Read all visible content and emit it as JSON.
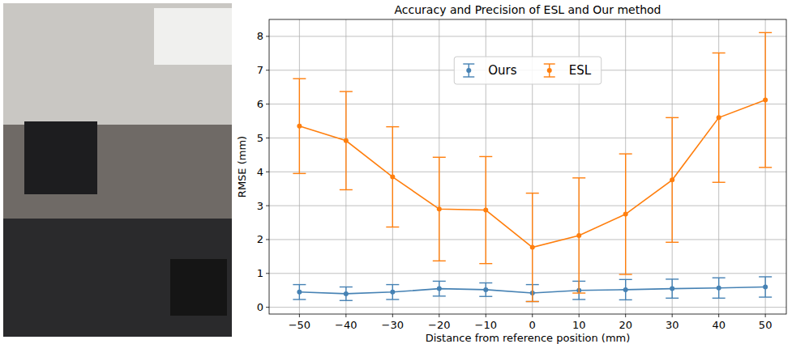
{
  "chart_data": {
    "type": "line",
    "title": "Accuracy and Precision of ESL and Our method",
    "x_label": "Distance from reference position (mm)",
    "y_label": "RMSE (mm)",
    "x": [
      -50,
      -40,
      -30,
      -20,
      -10,
      0,
      10,
      20,
      30,
      40,
      50
    ],
    "series": [
      {
        "name": "Ours",
        "color": "#4682b4",
        "marker": "circle",
        "values": [
          0.45,
          0.4,
          0.45,
          0.55,
          0.52,
          0.42,
          0.5,
          0.52,
          0.55,
          0.57,
          0.6
        ],
        "errors": [
          0.22,
          0.2,
          0.22,
          0.22,
          0.2,
          0.25,
          0.27,
          0.3,
          0.28,
          0.3,
          0.3
        ]
      },
      {
        "name": "ESL",
        "color": "#ff7f0e",
        "marker": "circle",
        "values": [
          5.35,
          4.92,
          3.85,
          2.9,
          2.87,
          1.77,
          2.12,
          2.75,
          3.76,
          5.6,
          6.12
        ],
        "errors": [
          1.4,
          1.45,
          1.48,
          1.53,
          1.58,
          1.6,
          1.7,
          1.78,
          1.84,
          1.91,
          1.99
        ]
      }
    ],
    "xlim": [
      -56.5,
      54.5
    ],
    "ylim": [
      -0.2,
      8.5
    ],
    "xticks": [
      {
        "value": -50,
        "label": "−50"
      },
      {
        "value": -40,
        "label": "−40"
      },
      {
        "value": -30,
        "label": "−30"
      },
      {
        "value": -20,
        "label": "−20"
      },
      {
        "value": -10,
        "label": "−10"
      },
      0,
      10,
      20,
      30,
      40,
      50
    ],
    "yticks": [
      0,
      1,
      2,
      3,
      4,
      5,
      6,
      7,
      8
    ],
    "grid": true,
    "legend": "upper center"
  }
}
